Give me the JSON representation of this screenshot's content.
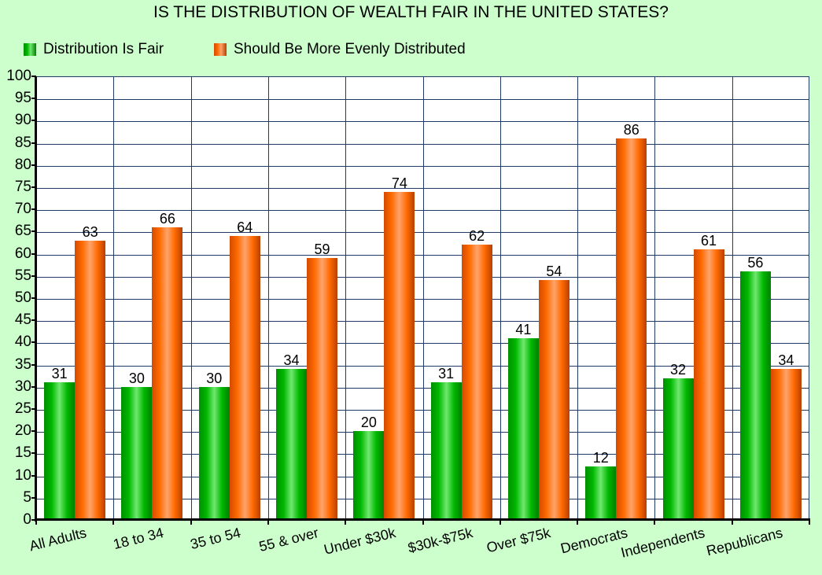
{
  "chart_data": {
    "type": "bar",
    "title": "IS THE DISTRIBUTION OF WEALTH FAIR IN THE UNITED STATES?",
    "xlabel": "",
    "ylabel": "",
    "ylim": [
      0,
      100
    ],
    "yticks": [
      0,
      5,
      10,
      15,
      20,
      25,
      30,
      35,
      40,
      45,
      50,
      55,
      60,
      65,
      70,
      75,
      80,
      85,
      90,
      95,
      100
    ],
    "grid": true,
    "legend_position": "top-left",
    "categories": [
      "All Adults",
      "18 to 34",
      "35 to 54",
      "55 & over",
      "Under $30k",
      "$30k-$75k",
      "Over $75k",
      "Democrats",
      "Independents",
      "Republicans"
    ],
    "series": [
      {
        "name": "Distribution Is Fair",
        "color": "#00b800",
        "values": [
          31,
          30,
          30,
          34,
          20,
          31,
          41,
          12,
          32,
          56
        ]
      },
      {
        "name": "Should Be More Evenly Distributed",
        "color": "#ff6a00",
        "values": [
          63,
          66,
          64,
          59,
          74,
          62,
          54,
          86,
          61,
          34
        ]
      }
    ]
  },
  "colors": {
    "background": "#ccffcc",
    "plot_background": "#ffffff",
    "grid": "#1f3b66"
  }
}
